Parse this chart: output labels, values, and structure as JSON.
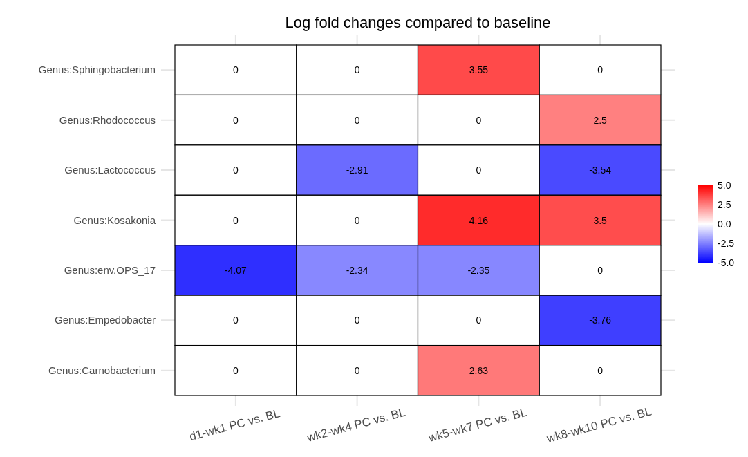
{
  "chart_data": {
    "type": "heatmap",
    "title": "Log fold changes compared to baseline",
    "categories": [
      "d1-wk1 PC vs. BL",
      "wk2-wk4 PC vs. BL",
      "wk5-wk7 PC vs. BL",
      "wk8-wk10 PC vs. BL"
    ],
    "y_categories": [
      "Genus:Sphingobacterium",
      "Genus:Rhodococcus",
      "Genus:Lactococcus",
      "Genus:Kosakonia",
      "Genus:env.OPS_17",
      "Genus:Empedobacter",
      "Genus:Carnobacterium"
    ],
    "cells": [
      [
        0,
        0,
        3.55,
        0
      ],
      [
        0,
        0,
        0,
        2.5
      ],
      [
        0,
        -2.91,
        0,
        -3.54
      ],
      [
        0,
        0,
        4.16,
        3.5
      ],
      [
        -4.07,
        -2.34,
        -2.35,
        0
      ],
      [
        0,
        0,
        0,
        -3.76
      ],
      [
        0,
        0,
        2.63,
        0
      ]
    ],
    "data_labels": true,
    "clim": [
      -5,
      5
    ],
    "cticks": [
      {
        "value": -5,
        "label": "-5.0"
      },
      {
        "value": -2.5,
        "label": "-2.5"
      },
      {
        "value": 0,
        "label": "0.0"
      },
      {
        "value": 2.5,
        "label": "2.5"
      },
      {
        "value": 5,
        "label": "5.0"
      }
    ],
    "colors": [
      "#0000ff",
      "#ffffff",
      "#ff0000"
    ],
    "grid": true
  }
}
